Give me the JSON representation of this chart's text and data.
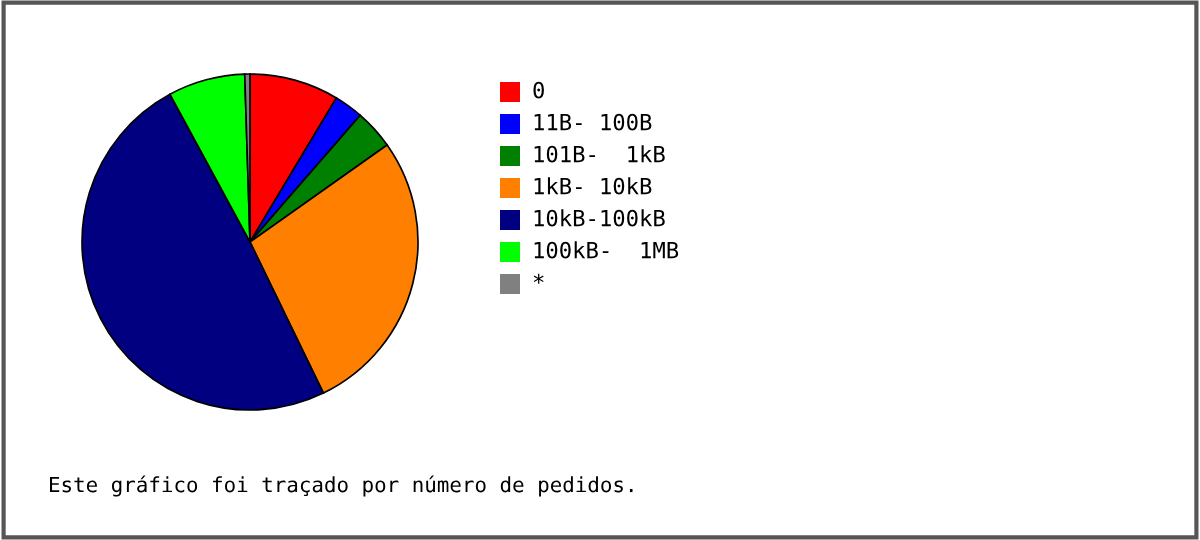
{
  "chart_data": {
    "type": "pie",
    "categories": [
      "0",
      "11B- 100B",
      "101B-  1kB",
      "1kB- 10kB",
      "10kB-100kB",
      "100kB-  1MB",
      "*"
    ],
    "values": [
      8.6,
      2.8,
      3.8,
      27.6,
      49.3,
      7.4,
      0.5
    ],
    "colors": [
      "#ff0000",
      "#0000ff",
      "#008000",
      "#ff8000",
      "#000080",
      "#00ff00",
      "#808080"
    ],
    "legend": "right",
    "annotations": [
      "Este gráfico foi traçado por número de pedidos."
    ]
  }
}
